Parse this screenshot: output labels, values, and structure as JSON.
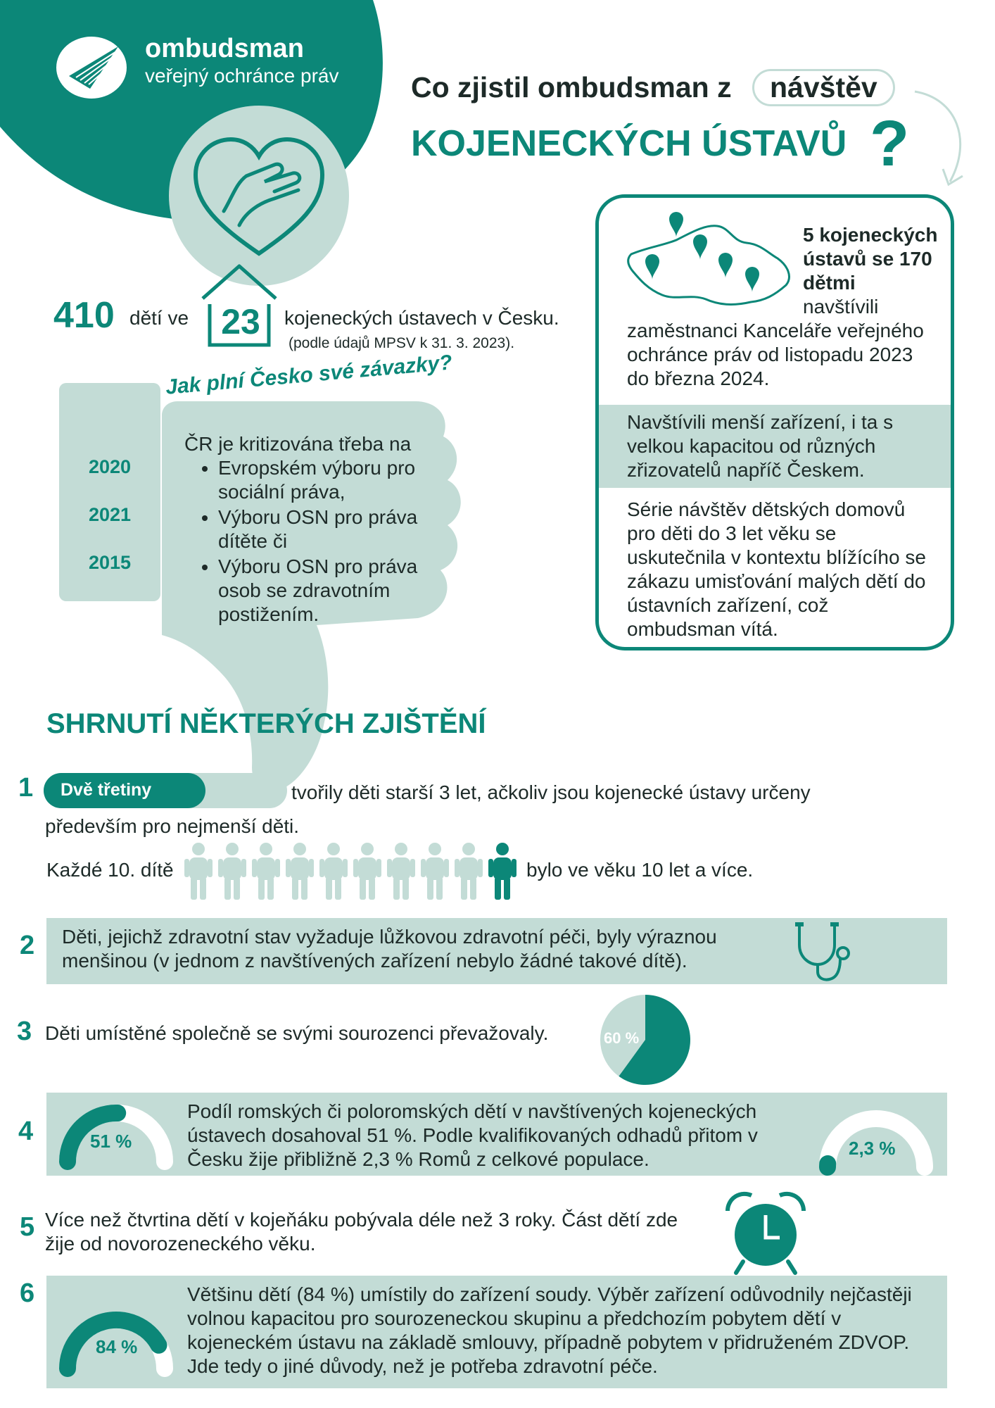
{
  "brand": {
    "name": "ombudsman",
    "subtitle": "veřejný ochránce práv"
  },
  "header": {
    "line1_prefix": "Co zjistil ombudsman z",
    "line1_highlight": "návštěv",
    "line2": "KOJENECKÝCH ÚSTAVŮ",
    "question_mark": "?"
  },
  "stats": {
    "children_count": "410",
    "children_label": "dětí ve",
    "institutions_count": "23",
    "institutions_label": "kojeneckých ústavech v Česku.",
    "source_note": "(podle údajů MPSV k 31. 3. 2023)."
  },
  "visits_box": {
    "heading": "5 kojeneckých ústavů se 170 dětmi",
    "intro_tail": "navštívili",
    "paragraph1": "zaměstnanci Kanceláře veřejného ochránce práv od listopadu 2023 do března 2024.",
    "paragraph2": "Navštívili menší zařízení, i ta s velkou kapacitou od různých zřizovatelů napříč Českem.",
    "paragraph3": "Série návštěv dětských domovů pro děti do 3 let věku se uskutečnila v kontextu blížícího se zákazu umisťování malých dětí do ústavních zařízení, což ombudsman vítá."
  },
  "commitments": {
    "title": "Jak plní Česko své závazky?",
    "intro": "ČR je kritizována třeba na",
    "years": [
      "2020",
      "2021",
      "2015"
    ],
    "items": [
      "Evropském výboru pro sociální práva,",
      "Výboru OSN pro práva dítěte či",
      "Výboru OSN pro práva osob se zdravotním postižením."
    ]
  },
  "summary": {
    "title": "SHRNUTÍ NĚKTERÝCH ZJIŠTĚNÍ",
    "f1": {
      "number": "1",
      "pill": "Dvě třetiny",
      "text_a": "tvořily děti starší 3 let, ačkoliv jsou kojenecké ústavy určeny",
      "text_b": "především pro nejmenší děti.",
      "tenth_prefix": "Každé 10. dítě",
      "tenth_suffix": "bylo ve věku 10 let a více.",
      "people_total": 10,
      "people_highlighted": 1
    },
    "f2": {
      "number": "2",
      "text": "Děti, jejichž zdravotní stav vyžaduje lůžkovou zdravotní péči, byly výraznou menšinou (v jednom z navštívených zařízení nebylo žádné takové dítě)."
    },
    "f3": {
      "number": "3",
      "text": "Děti umístěné společně se svými sourozenci převažovaly.",
      "pie_label": "60 %",
      "pie_value": 60
    },
    "f4": {
      "number": "4",
      "text": "Podíl romských či poloromských dětí v navštívených kojeneckých ústavech dosahoval 51 %. Podle kvalifikovaných odhadů přitom v Česku žije přibližně 2,3 % Romů z celkové populace.",
      "gauge1_label": "51 %",
      "gauge1_value": 51,
      "gauge2_label": "2,3 %",
      "gauge2_value": 2.3
    },
    "f5": {
      "number": "5",
      "text": "Více než čtvrtina dětí v kojeňáku pobývala déle než 3 roky. Část dětí zde žije od novorozeneckého věku."
    },
    "f6": {
      "number": "6",
      "text": "Většinu dětí (84 %) umístily do zařízení soudy. Výběr zařízení odůvodnily nejčastěji volnou kapacitou pro sourozeneckou skupinu a předchozím pobytem dětí v kojeneckém ústavu na základě smlouvy, případně pobytem v přidruženém ZDVOP. Jde tedy o jiné důvody, než je potřeba zdravotní péče.",
      "gauge_label": "84 %",
      "gauge_value": 84
    }
  },
  "colors": {
    "teal": "#0c8778",
    "light": "#c3dcd6",
    "dark": "#1d2a28"
  }
}
